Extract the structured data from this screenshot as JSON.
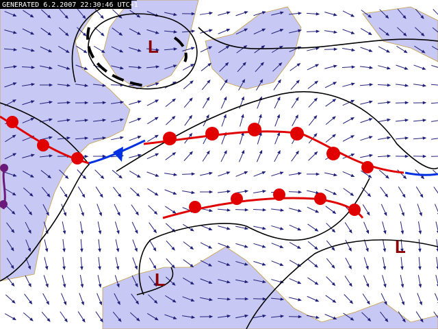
{
  "header": {
    "generated": "GENERATED 6.2.2007 22:30:46 UTC+1"
  },
  "lows": [
    {
      "label": "L"
    },
    {
      "label": "L"
    },
    {
      "label": "L"
    }
  ]
}
